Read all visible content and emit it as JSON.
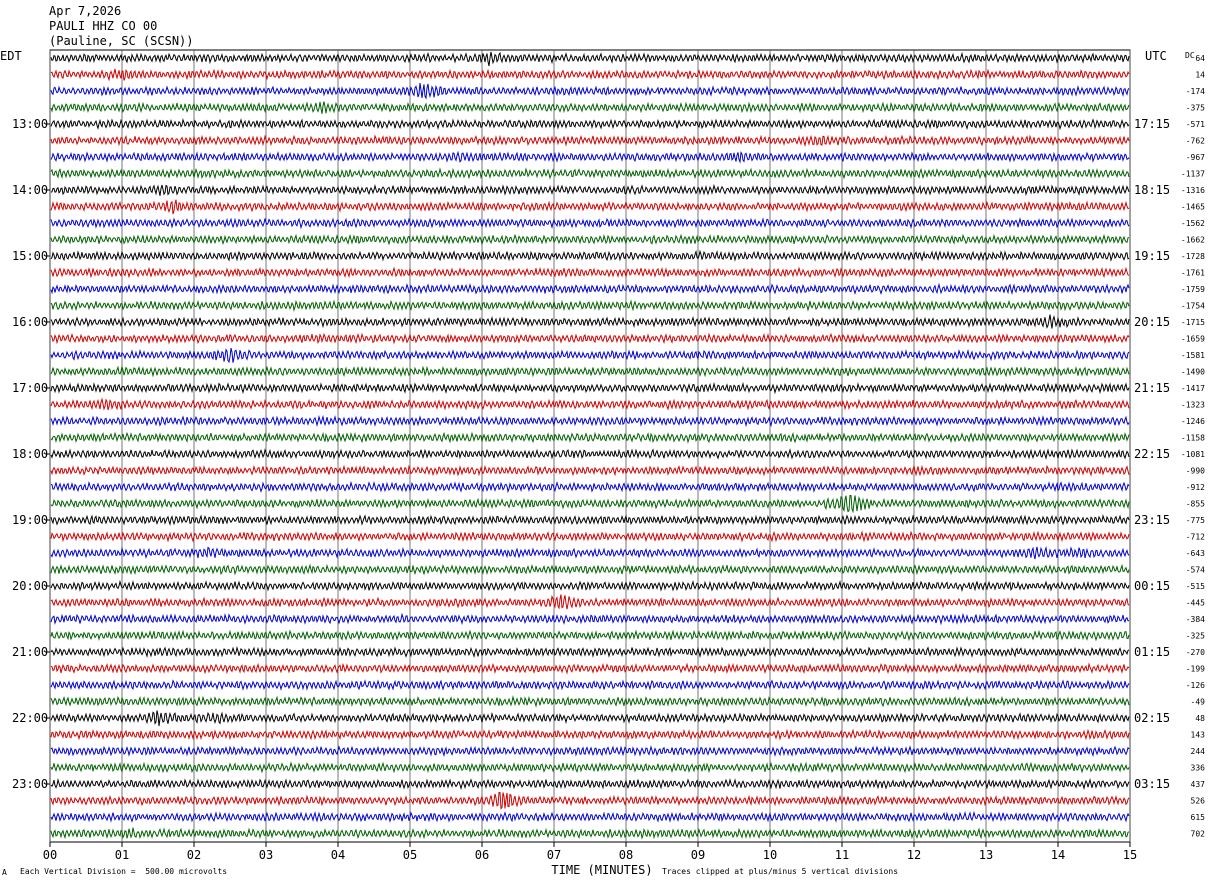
{
  "header": {
    "date": "Apr 7,2026",
    "station": "PAULI HHZ CO 00",
    "location": "(Pauline, SC (SCSN))"
  },
  "left_tz": "EDT",
  "right_tz": "UTC",
  "dc_label": "DC",
  "footer": {
    "scale": "Each Vertical Division =  500.00 microvolts",
    "clip": "Traces clipped at plus/minus 5 vertical divisions",
    "mark": "A"
  },
  "chart_data": {
    "type": "line",
    "xlabel": "TIME (MINUTES)",
    "x_ticks": [
      "00",
      "01",
      "02",
      "03",
      "04",
      "05",
      "06",
      "07",
      "08",
      "09",
      "10",
      "11",
      "12",
      "13",
      "14",
      "15"
    ],
    "xlim": [
      0,
      15
    ],
    "trace_colors": [
      "#000000",
      "#d00000",
      "#0000d0",
      "#006000"
    ],
    "rows": 48,
    "left_hour_labels": [
      "13:00",
      "14:00",
      "15:00",
      "16:00",
      "17:00",
      "18:00",
      "19:00",
      "20:00",
      "21:00",
      "22:00",
      "23:00"
    ],
    "right_hour_labels": [
      "17:15",
      "18:15",
      "19:15",
      "20:15",
      "21:15",
      "22:15",
      "23:15",
      "00:15",
      "01:15",
      "02:15",
      "03:15"
    ],
    "dc_offsets": [
      64,
      14,
      -174,
      -375,
      -571,
      -762,
      -967,
      -1137,
      -1316,
      -1465,
      -1562,
      -1662,
      -1728,
      -1761,
      -1759,
      -1754,
      -1715,
      -1659,
      -1581,
      -1490,
      -1417,
      -1323,
      -1246,
      -1158,
      -1081,
      -990,
      -912,
      -855,
      -775,
      -712,
      -643,
      -574,
      -515,
      -445,
      -384,
      -325,
      -270,
      -199,
      -126,
      -49,
      48,
      143,
      244,
      336,
      437,
      526,
      615,
      702
    ],
    "events": [
      {
        "row": 0,
        "minute": 6.1,
        "amp": 1.6
      },
      {
        "row": 1,
        "minute": 1.0,
        "amp": 1.4
      },
      {
        "row": 2,
        "minute": 5.2,
        "amp": 2.0
      },
      {
        "row": 3,
        "minute": 3.8,
        "amp": 1.4
      },
      {
        "row": 5,
        "minute": 10.7,
        "amp": 1.4
      },
      {
        "row": 6,
        "minute": 9.6,
        "amp": 1.4
      },
      {
        "row": 6,
        "minute": 5.7,
        "amp": 1.3
      },
      {
        "row": 8,
        "minute": 1.6,
        "amp": 1.4
      },
      {
        "row": 9,
        "minute": 1.7,
        "amp": 1.6
      },
      {
        "row": 16,
        "minute": 13.9,
        "amp": 1.5
      },
      {
        "row": 18,
        "minute": 2.5,
        "amp": 1.8
      },
      {
        "row": 21,
        "minute": 0.8,
        "amp": 1.5
      },
      {
        "row": 27,
        "minute": 11.1,
        "amp": 2.6
      },
      {
        "row": 30,
        "minute": 13.7,
        "amp": 1.5
      },
      {
        "row": 30,
        "minute": 14.3,
        "amp": 1.5
      },
      {
        "row": 30,
        "minute": 2.2,
        "amp": 1.3
      },
      {
        "row": 33,
        "minute": 7.1,
        "amp": 1.8
      },
      {
        "row": 40,
        "minute": 1.5,
        "amp": 1.7
      },
      {
        "row": 40,
        "minute": 2.3,
        "amp": 1.3
      },
      {
        "row": 45,
        "minute": 6.3,
        "amp": 2.6
      },
      {
        "row": 47,
        "minute": 1.1,
        "amp": 1.3
      }
    ]
  }
}
